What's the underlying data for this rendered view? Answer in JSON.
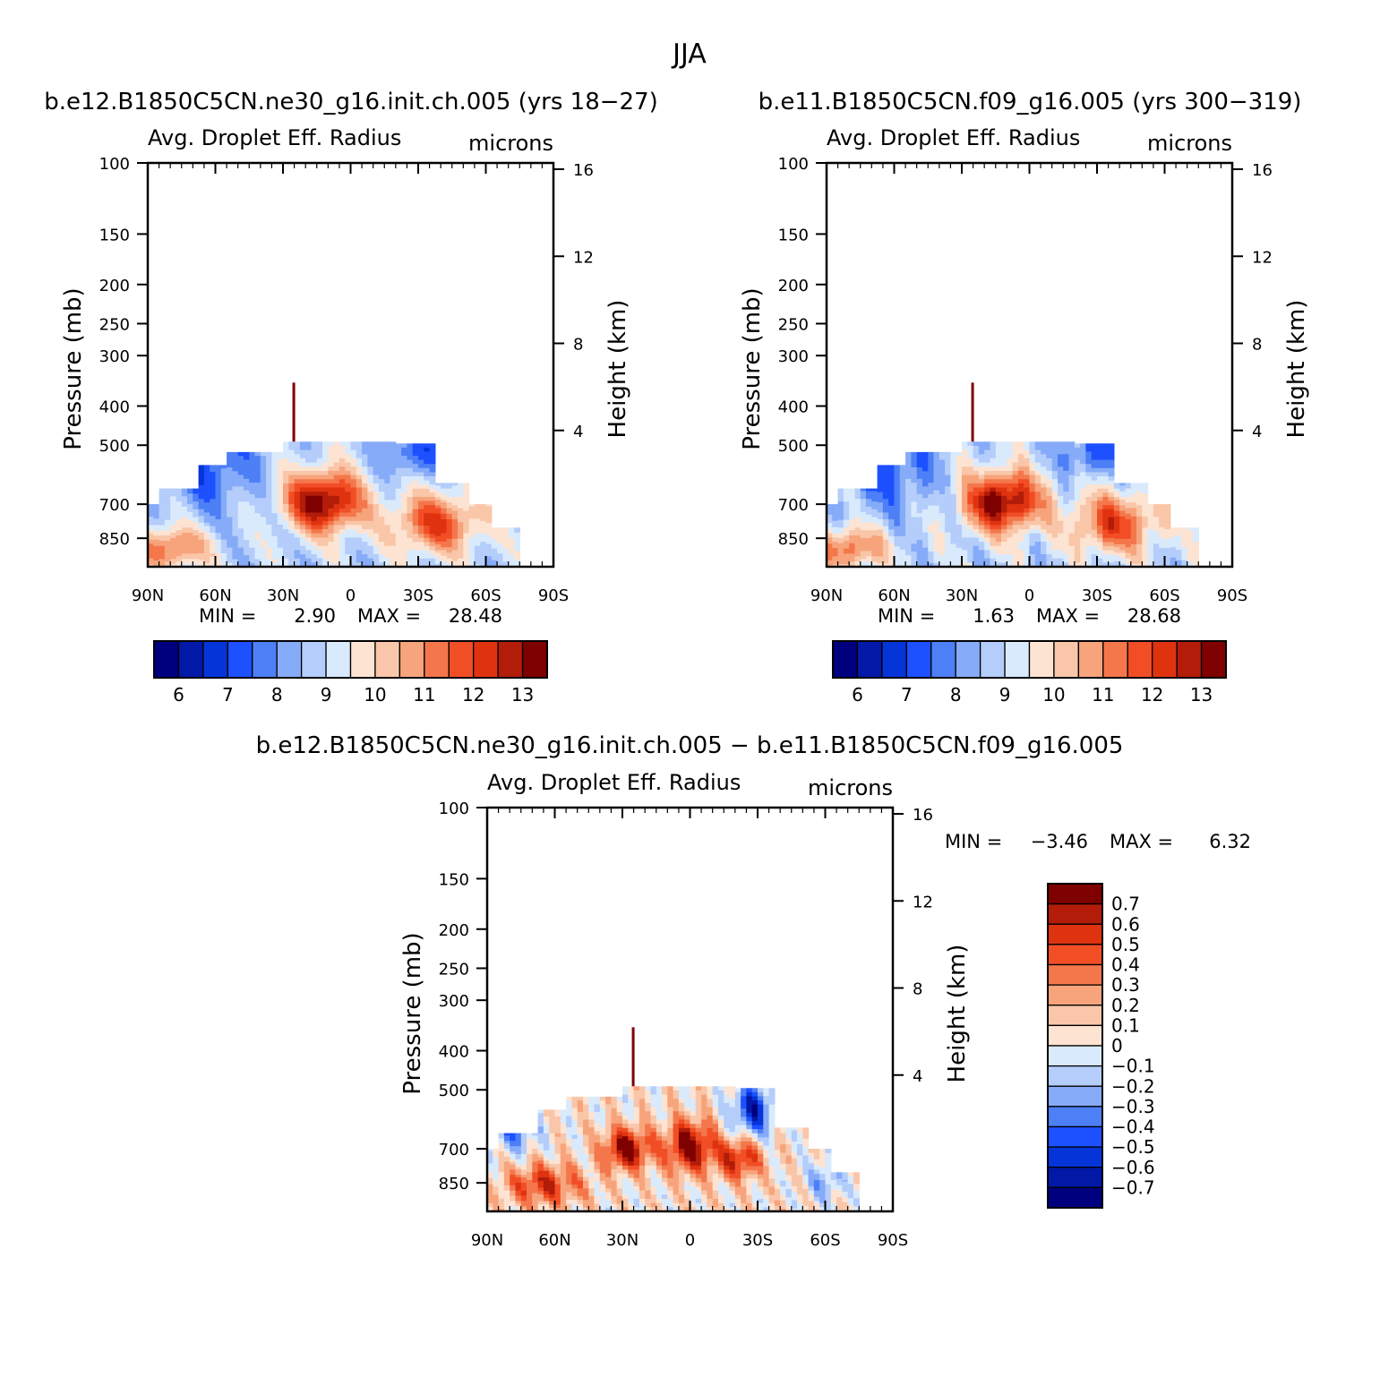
{
  "title": "JJA",
  "chart_data": [
    {
      "type": "heatmap",
      "panel_title": "b.e12.B1850C5CN.ne30_g16.init.ch.005 (yrs 18-27)",
      "variable_label": "Avg. Droplet Eff. Radius",
      "units": "microns",
      "ylabel": "Pressure (mb)",
      "ylabel_right": "Height (km)",
      "x_ticks": [
        "90N",
        "60N",
        "30N",
        "0",
        "30S",
        "60S",
        "90S"
      ],
      "y_ticks": [
        "100",
        "150",
        "200",
        "250",
        "300",
        "400",
        "500",
        "700",
        "850"
      ],
      "y_ticks_right": [
        "16",
        "12",
        "8",
        "4"
      ],
      "ylim": [
        100,
        1000
      ],
      "ylog": true,
      "min_label": "MIN =",
      "min_value": "2.90",
      "max_label": "MAX =",
      "max_value": "28.48",
      "colorbar": {
        "orientation": "horizontal",
        "labels": [
          "6",
          "7",
          "8",
          "9",
          "10",
          "11",
          "12",
          "13"
        ],
        "colors": [
          "#00007f",
          "#0218a6",
          "#0535d8",
          "#1d50ff",
          "#4d7ff6",
          "#86abf8",
          "#b4cdfa",
          "#d9eafc",
          "#fde3d2",
          "#f9c6a9",
          "#f7a47c",
          "#f4774c",
          "#f24e26",
          "#df3310",
          "#b21c09",
          "#7f0000"
        ]
      }
    },
    {
      "type": "heatmap",
      "panel_title": "b.e11.B1850C5CN.f09_g16.005 (yrs 300-319)",
      "variable_label": "Avg. Droplet Eff. Radius",
      "units": "microns",
      "ylabel": "Pressure (mb)",
      "ylabel_right": "Height (km)",
      "x_ticks": [
        "90N",
        "60N",
        "30N",
        "0",
        "30S",
        "60S",
        "90S"
      ],
      "y_ticks": [
        "100",
        "150",
        "200",
        "250",
        "300",
        "400",
        "500",
        "700",
        "850"
      ],
      "y_ticks_right": [
        "16",
        "12",
        "8",
        "4"
      ],
      "ylim": [
        100,
        1000
      ],
      "ylog": true,
      "min_label": "MIN =",
      "min_value": "1.63",
      "max_label": "MAX =",
      "max_value": "28.68",
      "colorbar": {
        "orientation": "horizontal",
        "labels": [
          "6",
          "7",
          "8",
          "9",
          "10",
          "11",
          "12",
          "13"
        ],
        "colors": [
          "#00007f",
          "#0218a6",
          "#0535d8",
          "#1d50ff",
          "#4d7ff6",
          "#86abf8",
          "#b4cdfa",
          "#d9eafc",
          "#fde3d2",
          "#f9c6a9",
          "#f7a47c",
          "#f4774c",
          "#f24e26",
          "#df3310",
          "#b21c09",
          "#7f0000"
        ]
      }
    },
    {
      "type": "heatmap",
      "panel_title": "b.e12.B1850C5CN.ne30_g16.init.ch.005 - b.e11.B1850C5CN.f09_g16.005",
      "variable_label": "Avg. Droplet Eff. Radius",
      "units": "microns",
      "ylabel": "Pressure (mb)",
      "ylabel_right": "Height (km)",
      "x_ticks": [
        "90N",
        "60N",
        "30N",
        "0",
        "30S",
        "60S",
        "90S"
      ],
      "y_ticks": [
        "100",
        "150",
        "200",
        "250",
        "300",
        "400",
        "500",
        "700",
        "850"
      ],
      "y_ticks_right": [
        "16",
        "12",
        "8",
        "4"
      ],
      "ylim": [
        100,
        1000
      ],
      "ylog": true,
      "min_label": "MIN =",
      "min_value": "-3.46",
      "max_label": "MAX =",
      "max_value": "6.32",
      "colorbar": {
        "orientation": "vertical",
        "labels": [
          "0.7",
          "0.6",
          "0.5",
          "0.4",
          "0.3",
          "0.2",
          "0.1",
          "0",
          "-0.1",
          "-0.2",
          "-0.3",
          "-0.4",
          "-0.5",
          "-0.6",
          "-0.7"
        ],
        "colors": [
          "#7f0000",
          "#b21c09",
          "#df3310",
          "#f24e26",
          "#f4774c",
          "#f7a47c",
          "#f9c6a9",
          "#fde3d2",
          "#d9eafc",
          "#b4cdfa",
          "#86abf8",
          "#4d7ff6",
          "#1d50ff",
          "#0535d8",
          "#0218a6",
          "#00007f"
        ]
      }
    }
  ]
}
